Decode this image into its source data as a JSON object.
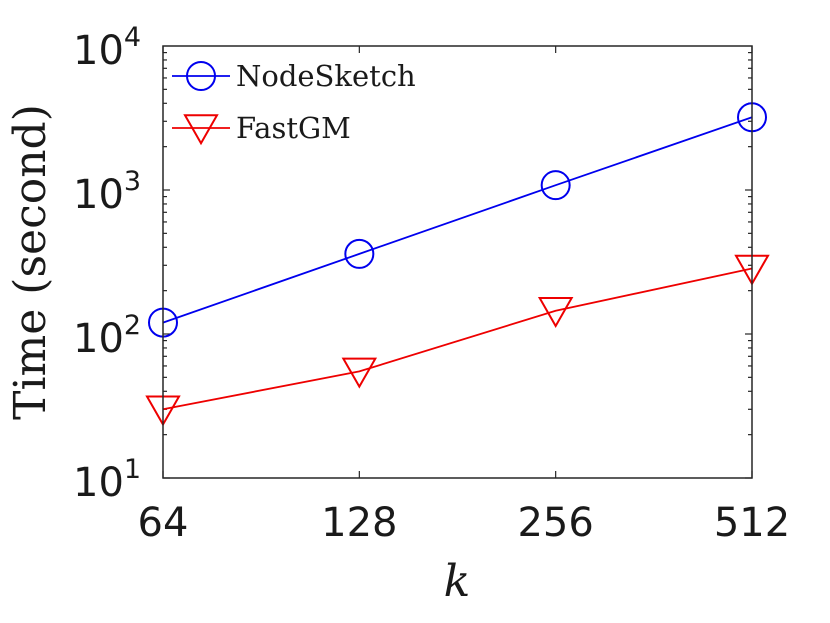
{
  "chart_data": {
    "type": "line",
    "xscale": "log2",
    "yscale": "log10",
    "x": [
      64,
      128,
      256,
      512
    ],
    "xticks": [
      "64",
      "128",
      "256",
      "512"
    ],
    "xlabel": "k",
    "ylabel": "Time (second)",
    "ylim": [
      10,
      10000
    ],
    "yticks": [
      {
        "base": "10",
        "exp": "1"
      },
      {
        "base": "10",
        "exp": "2"
      },
      {
        "base": "10",
        "exp": "3"
      },
      {
        "base": "10",
        "exp": "4"
      }
    ],
    "grid": false,
    "legend_position": "top-left",
    "series": [
      {
        "name": "NodeSketch",
        "color": "#0000ee",
        "marker": "circle",
        "values": [
          120,
          360,
          1080,
          3200
        ]
      },
      {
        "name": "FastGM",
        "color": "#ee0000",
        "marker": "triangle-down",
        "values": [
          30,
          55,
          145,
          285
        ]
      }
    ]
  }
}
